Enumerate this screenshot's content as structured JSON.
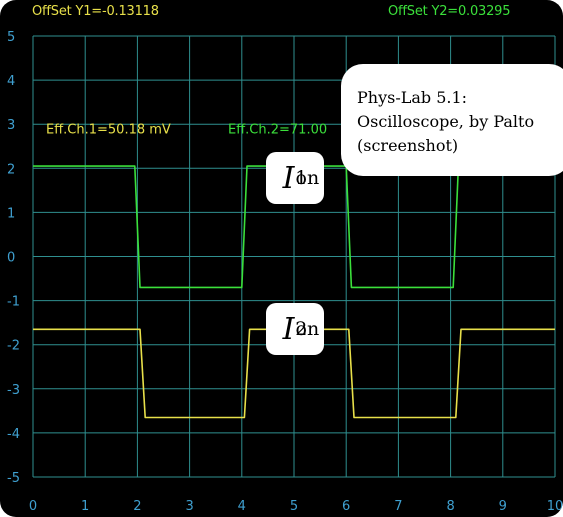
{
  "header": {
    "offset_y1": "OffSet Y1=-0.13118",
    "offset_y2": "OffSet Y2=0.03295"
  },
  "readouts": {
    "eff_ch1": "Eff.Ch.1=50.18 mV",
    "eff_ch2": "Eff.Ch.2=71.00"
  },
  "info_box": {
    "line1": "Phys-Lab 5.1:",
    "line2": "Oscilloscope, by Palto",
    "line3": "(screenshot)"
  },
  "labels": {
    "i1": {
      "symbol": "I",
      "sup": "on",
      "sub": "1"
    },
    "i2": {
      "symbol": "I",
      "sup": "on",
      "sub": "2"
    }
  },
  "colors": {
    "background": "#000000",
    "grid": "#2f8f8f",
    "axis_labels": "#3fa0d0",
    "channel1": "#e8e04a",
    "channel2": "#3be03b"
  },
  "chart_data": {
    "type": "line",
    "xlim": [
      0,
      10
    ],
    "ylim": [
      -5,
      5
    ],
    "x_ticks": [
      "0",
      "1",
      "2",
      "3",
      "4",
      "5",
      "6",
      "7",
      "8",
      "9",
      "10"
    ],
    "y_ticks": [
      "5",
      "4",
      "3",
      "2",
      "1",
      "0",
      "-1",
      "-2",
      "-3",
      "-4",
      "-5"
    ],
    "series": [
      {
        "channel": 2,
        "color": "#3be03b",
        "x": [
          0,
          1.95,
          2.05,
          4.0,
          4.1,
          6.0,
          6.1,
          8.05,
          8.15,
          10.0
        ],
        "y": [
          2.05,
          2.05,
          -0.7,
          -0.7,
          2.05,
          2.05,
          -0.7,
          -0.7,
          2.05,
          2.05
        ]
      },
      {
        "channel": 1,
        "color": "#e8e04a",
        "x": [
          0,
          2.05,
          2.15,
          4.05,
          4.15,
          6.05,
          6.15,
          8.1,
          8.2,
          10.0
        ],
        "y": [
          -1.65,
          -1.65,
          -3.65,
          -3.65,
          -1.65,
          -1.65,
          -3.65,
          -3.65,
          -1.65,
          -1.65
        ]
      }
    ]
  }
}
